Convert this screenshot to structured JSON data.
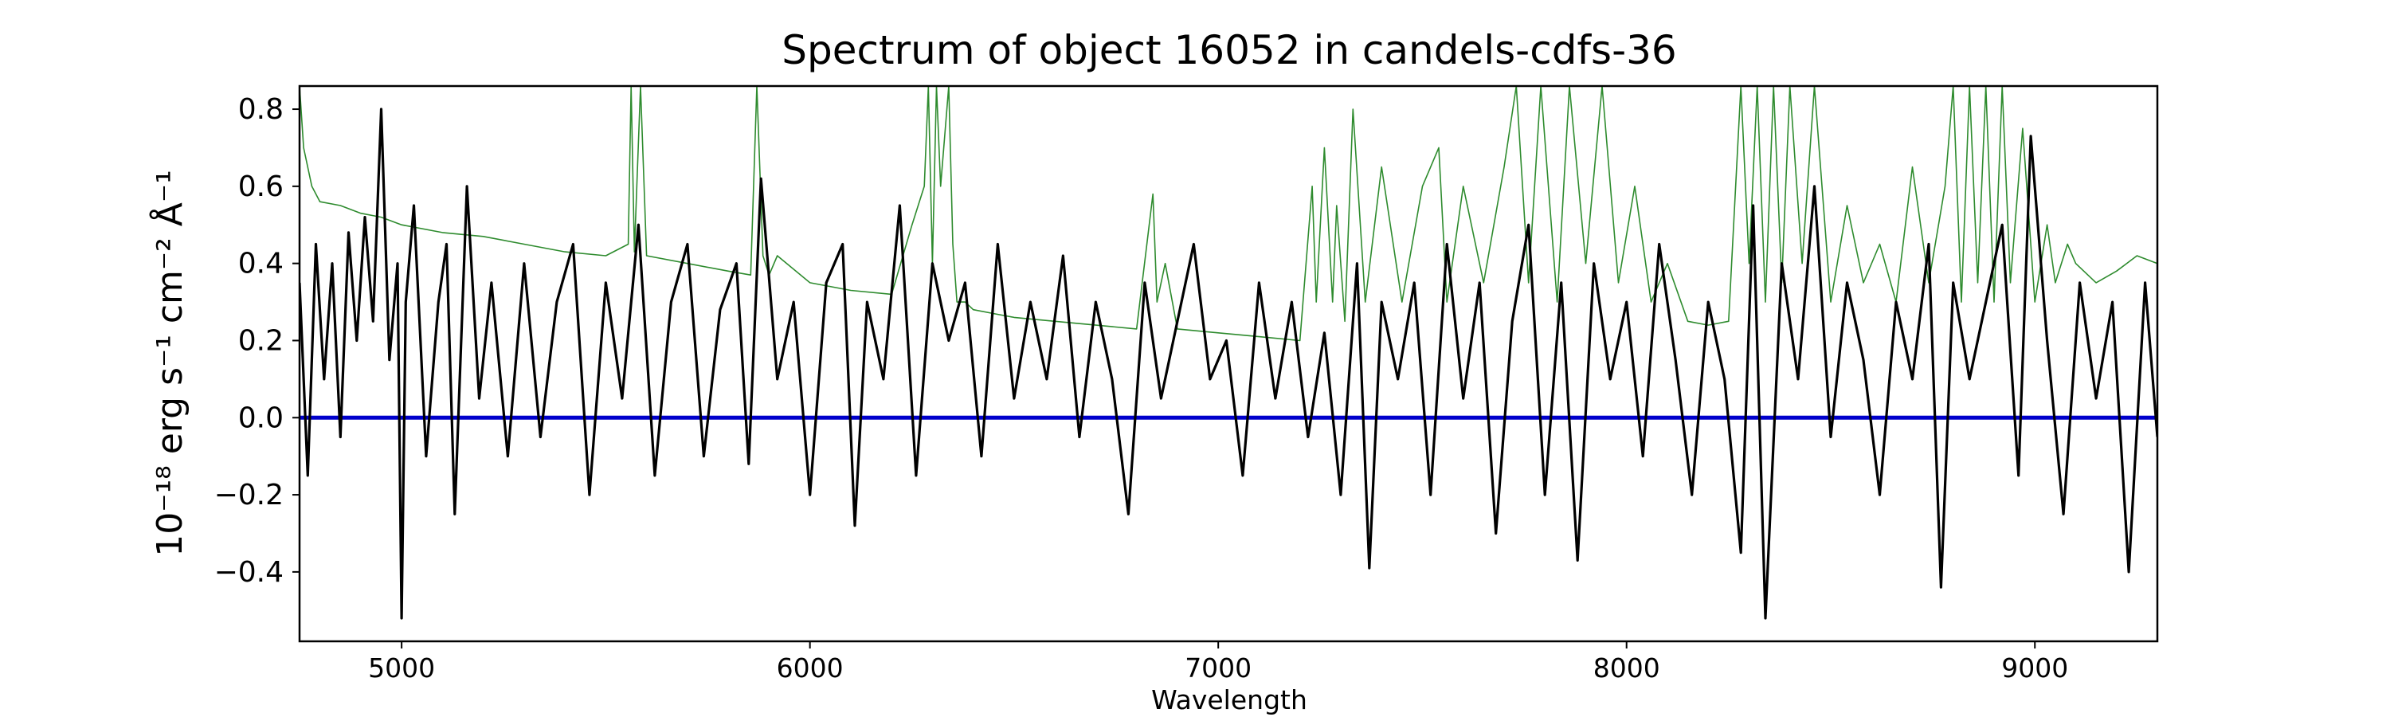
{
  "chart_data": {
    "type": "line",
    "title": "Spectrum of object 16052 in candels-cdfs-36",
    "xlabel": "Wavelength",
    "ylabel": "10⁻¹⁸ erg s⁻¹ cm⁻² Å⁻¹",
    "xlim": [
      4750,
      9300
    ],
    "ylim": [
      -0.58,
      0.86
    ],
    "xticks": [
      5000,
      6000,
      7000,
      8000,
      9000
    ],
    "xtick_labels": [
      "5000",
      "6000",
      "7000",
      "8000",
      "9000"
    ],
    "yticks": [
      -0.4,
      -0.2,
      0.0,
      0.2,
      0.4,
      0.6,
      0.8
    ],
    "ytick_labels": [
      "−0.4",
      "−0.2",
      "0.0",
      "0.2",
      "0.4",
      "0.6",
      "0.8"
    ],
    "grid": false,
    "legend": "none",
    "colors": {
      "flux": "#000000",
      "error": "#2e8b2e",
      "zero": "#0000cc"
    },
    "series": [
      {
        "role": "flux",
        "x": [
          4750,
          4770,
          4790,
          4810,
          4830,
          4850,
          4870,
          4890,
          4910,
          4930,
          4950,
          4970,
          4990,
          5000,
          5010,
          5030,
          5060,
          5090,
          5110,
          5130,
          5160,
          5190,
          5220,
          5260,
          5300,
          5340,
          5380,
          5420,
          5460,
          5500,
          5540,
          5580,
          5620,
          5660,
          5700,
          5740,
          5780,
          5820,
          5850,
          5880,
          5920,
          5960,
          6000,
          6040,
          6080,
          6110,
          6140,
          6180,
          6220,
          6260,
          6300,
          6340,
          6380,
          6420,
          6460,
          6500,
          6540,
          6580,
          6620,
          6660,
          6700,
          6740,
          6780,
          6820,
          6860,
          6900,
          6940,
          6980,
          7020,
          7060,
          7100,
          7140,
          7180,
          7220,
          7260,
          7300,
          7340,
          7370,
          7400,
          7440,
          7480,
          7520,
          7560,
          7600,
          7640,
          7680,
          7720,
          7760,
          7800,
          7840,
          7880,
          7920,
          7960,
          8000,
          8040,
          8080,
          8120,
          8160,
          8200,
          8240,
          8280,
          8310,
          8340,
          8380,
          8420,
          8460,
          8500,
          8540,
          8580,
          8620,
          8660,
          8700,
          8740,
          8770,
          8800,
          8840,
          8880,
          8920,
          8960,
          8990,
          9030,
          9070,
          9110,
          9150,
          9190,
          9230,
          9270,
          9300
        ],
        "y": [
          0.35,
          -0.15,
          0.45,
          0.1,
          0.4,
          -0.05,
          0.48,
          0.2,
          0.52,
          0.25,
          0.8,
          0.15,
          0.4,
          -0.52,
          0.3,
          0.55,
          -0.1,
          0.3,
          0.45,
          -0.25,
          0.6,
          0.05,
          0.35,
          -0.1,
          0.4,
          -0.05,
          0.3,
          0.45,
          -0.2,
          0.35,
          0.05,
          0.5,
          -0.15,
          0.3,
          0.45,
          -0.1,
          0.28,
          0.4,
          -0.12,
          0.62,
          0.1,
          0.3,
          -0.2,
          0.35,
          0.45,
          -0.28,
          0.3,
          0.1,
          0.55,
          -0.15,
          0.4,
          0.2,
          0.35,
          -0.1,
          0.45,
          0.05,
          0.3,
          0.1,
          0.42,
          -0.05,
          0.3,
          0.1,
          -0.25,
          0.35,
          0.05,
          0.25,
          0.45,
          0.1,
          0.2,
          -0.15,
          0.35,
          0.05,
          0.3,
          -0.05,
          0.22,
          -0.2,
          0.4,
          -0.39,
          0.3,
          0.1,
          0.35,
          -0.2,
          0.45,
          0.05,
          0.35,
          -0.3,
          0.25,
          0.5,
          -0.2,
          0.35,
          -0.37,
          0.4,
          0.1,
          0.3,
          -0.1,
          0.45,
          0.15,
          -0.2,
          0.3,
          0.1,
          -0.35,
          0.55,
          -0.52,
          0.4,
          0.1,
          0.6,
          -0.05,
          0.35,
          0.15,
          -0.2,
          0.3,
          0.1,
          0.45,
          -0.44,
          0.35,
          0.1,
          0.3,
          0.5,
          -0.15,
          0.73,
          0.2,
          -0.25,
          0.35,
          0.05,
          0.3,
          -0.4,
          0.35,
          -0.05
        ]
      },
      {
        "role": "error",
        "x": [
          4750,
          4760,
          4780,
          4800,
          4850,
          4900,
          4950,
          5000,
          5100,
          5200,
          5300,
          5400,
          5500,
          5555,
          5562,
          5570,
          5585,
          5600,
          5700,
          5800,
          5855,
          5870,
          5885,
          5900,
          5920,
          6000,
          6100,
          6200,
          6250,
          6280,
          6290,
          6300,
          6310,
          6320,
          6340,
          6350,
          6360,
          6380,
          6400,
          6450,
          6500,
          6600,
          6700,
          6800,
          6840,
          6850,
          6870,
          6900,
          7000,
          7100,
          7200,
          7230,
          7240,
          7260,
          7280,
          7290,
          7310,
          7330,
          7360,
          7400,
          7450,
          7500,
          7540,
          7560,
          7600,
          7650,
          7700,
          7730,
          7760,
          7790,
          7830,
          7860,
          7900,
          7940,
          7980,
          8020,
          8060,
          8100,
          8150,
          8200,
          8250,
          8280,
          8300,
          8320,
          8340,
          8360,
          8380,
          8400,
          8430,
          8460,
          8500,
          8540,
          8580,
          8620,
          8660,
          8700,
          8740,
          8780,
          8800,
          8820,
          8840,
          8860,
          8880,
          8900,
          8920,
          8940,
          8970,
          9000,
          9030,
          9050,
          9080,
          9100,
          9150,
          9200,
          9250,
          9300
        ],
        "y": [
          0.86,
          0.7,
          0.6,
          0.56,
          0.55,
          0.53,
          0.52,
          0.5,
          0.48,
          0.47,
          0.45,
          0.43,
          0.42,
          0.45,
          0.86,
          0.43,
          0.86,
          0.42,
          0.4,
          0.38,
          0.37,
          0.86,
          0.42,
          0.37,
          0.42,
          0.35,
          0.33,
          0.32,
          0.5,
          0.6,
          0.86,
          0.4,
          0.86,
          0.6,
          0.86,
          0.45,
          0.3,
          0.3,
          0.28,
          0.27,
          0.26,
          0.25,
          0.24,
          0.23,
          0.58,
          0.3,
          0.4,
          0.23,
          0.22,
          0.21,
          0.2,
          0.6,
          0.3,
          0.7,
          0.3,
          0.55,
          0.25,
          0.8,
          0.3,
          0.65,
          0.3,
          0.6,
          0.7,
          0.3,
          0.6,
          0.35,
          0.65,
          0.86,
          0.35,
          0.86,
          0.3,
          0.86,
          0.4,
          0.86,
          0.35,
          0.6,
          0.3,
          0.4,
          0.25,
          0.24,
          0.25,
          0.86,
          0.4,
          0.86,
          0.3,
          0.86,
          0.35,
          0.86,
          0.4,
          0.86,
          0.3,
          0.55,
          0.35,
          0.45,
          0.3,
          0.65,
          0.35,
          0.6,
          0.86,
          0.3,
          0.86,
          0.35,
          0.86,
          0.3,
          0.86,
          0.35,
          0.75,
          0.3,
          0.5,
          0.35,
          0.45,
          0.4,
          0.35,
          0.38,
          0.42,
          0.4
        ]
      },
      {
        "role": "zero",
        "x": [
          4750,
          9300
        ],
        "y": [
          0.0,
          0.0
        ]
      }
    ]
  }
}
